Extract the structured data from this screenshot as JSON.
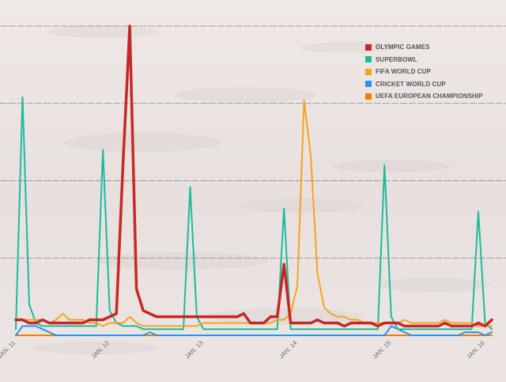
{
  "chart_data": {
    "type": "line",
    "title": "",
    "xlabel": "",
    "ylabel": "",
    "ylim": [
      0,
      100
    ],
    "grid": true,
    "legend_position": "top-right",
    "x_ticks": [
      "JAN. 11",
      "JAN. 12",
      "JAN. 13",
      "JAN. 14",
      "JAN. 15",
      "JAN. 16"
    ],
    "x": [
      0,
      1,
      2,
      3,
      4,
      5,
      6,
      7,
      8,
      9,
      10,
      11,
      12,
      13,
      14,
      15,
      16,
      17,
      18,
      19,
      20,
      21,
      22,
      23,
      24,
      25,
      26,
      27,
      28,
      29,
      30,
      31,
      32,
      33,
      34,
      35,
      36,
      37,
      38,
      39,
      40,
      41,
      42,
      43,
      44,
      45,
      46,
      47,
      48,
      49,
      50,
      51,
      52,
      53,
      54,
      55,
      56,
      57,
      58,
      59,
      60,
      61,
      62,
      63,
      64,
      65,
      66,
      67,
      68,
      69,
      70,
      71
    ],
    "series": [
      {
        "name": "OLYMPIC GAMES",
        "color": "#c62828",
        "width": 3.5,
        "values": [
          5,
          5,
          4,
          4,
          5,
          4,
          4,
          4,
          4,
          4,
          4,
          5,
          5,
          5,
          6,
          7,
          56,
          100,
          15,
          8,
          7,
          6,
          6,
          6,
          6,
          6,
          6,
          6,
          6,
          6,
          6,
          6,
          6,
          6,
          7,
          4,
          4,
          4,
          6,
          6,
          23,
          4,
          4,
          4,
          4,
          5,
          4,
          4,
          4,
          3,
          4,
          4,
          4,
          4,
          3,
          4,
          4,
          4,
          3,
          3,
          3,
          3,
          3,
          3,
          4,
          3,
          3,
          3,
          3,
          4,
          3,
          5
        ]
      },
      {
        "name": "SUPERBOWL",
        "color": "#1abc9c",
        "width": 2,
        "values": [
          2,
          77,
          10,
          4,
          3,
          3,
          3,
          3,
          3,
          3,
          3,
          3,
          3,
          60,
          8,
          4,
          3,
          3,
          3,
          2,
          2,
          2,
          2,
          2,
          2,
          2,
          48,
          6,
          2,
          2,
          2,
          2,
          2,
          2,
          2,
          2,
          2,
          2,
          2,
          2,
          41,
          2,
          2,
          2,
          2,
          2,
          2,
          2,
          2,
          2,
          2,
          2,
          2,
          2,
          2,
          55,
          6,
          2,
          2,
          2,
          2,
          2,
          2,
          2,
          2,
          2,
          2,
          2,
          2,
          40,
          4,
          2
        ]
      },
      {
        "name": "FIFA WORLD CUP",
        "color": "#f4a41d",
        "width": 2,
        "values": [
          5,
          5,
          5,
          5,
          5,
          4,
          5,
          7,
          5,
          5,
          5,
          4,
          4,
          3,
          4,
          4,
          4,
          6,
          4,
          3,
          3,
          3,
          3,
          3,
          3,
          3,
          3,
          3,
          4,
          4,
          4,
          4,
          4,
          4,
          4,
          4,
          4,
          4,
          4,
          5,
          5,
          7,
          16,
          76,
          58,
          20,
          9,
          7,
          6,
          6,
          5,
          5,
          4,
          4,
          4,
          4,
          4,
          4,
          5,
          4,
          4,
          4,
          4,
          4,
          5,
          4,
          4,
          4,
          4,
          3,
          3,
          3
        ]
      },
      {
        "name": "CRICKET WORLD CUP",
        "color": "#2196f3",
        "width": 2,
        "values": [
          0,
          3,
          3,
          3,
          2,
          1,
          0,
          0,
          0,
          0,
          0,
          0,
          0,
          0,
          0,
          0,
          0,
          0,
          0,
          0,
          1,
          0,
          0,
          0,
          0,
          0,
          0,
          0,
          0,
          0,
          0,
          0,
          0,
          0,
          0,
          0,
          0,
          0,
          0,
          0,
          0,
          0,
          0,
          0,
          0,
          0,
          0,
          0,
          0,
          0,
          0,
          0,
          0,
          0,
          0,
          0,
          3,
          2,
          1,
          0,
          0,
          0,
          0,
          0,
          0,
          0,
          0,
          1,
          1,
          1,
          0,
          1
        ]
      },
      {
        "name": "UEFA EUROPEAN CHAMPIONSHIP",
        "color": "#f57c00",
        "width": 2,
        "values": [
          0,
          0,
          0,
          0,
          0,
          0,
          0,
          0,
          0,
          0,
          0,
          0,
          0,
          0,
          0,
          0,
          0,
          0,
          0,
          0,
          0,
          0,
          0,
          0,
          0,
          0,
          0,
          0,
          0,
          0,
          0,
          0,
          0,
          0,
          0,
          0,
          0,
          0,
          0,
          0,
          0,
          0,
          0,
          0,
          0,
          0,
          0,
          0,
          0,
          0,
          0,
          0,
          0,
          0,
          0,
          0,
          0,
          0,
          0,
          0,
          0,
          0,
          0,
          0,
          0,
          0,
          0,
          0,
          0,
          0,
          0,
          0
        ]
      }
    ]
  }
}
